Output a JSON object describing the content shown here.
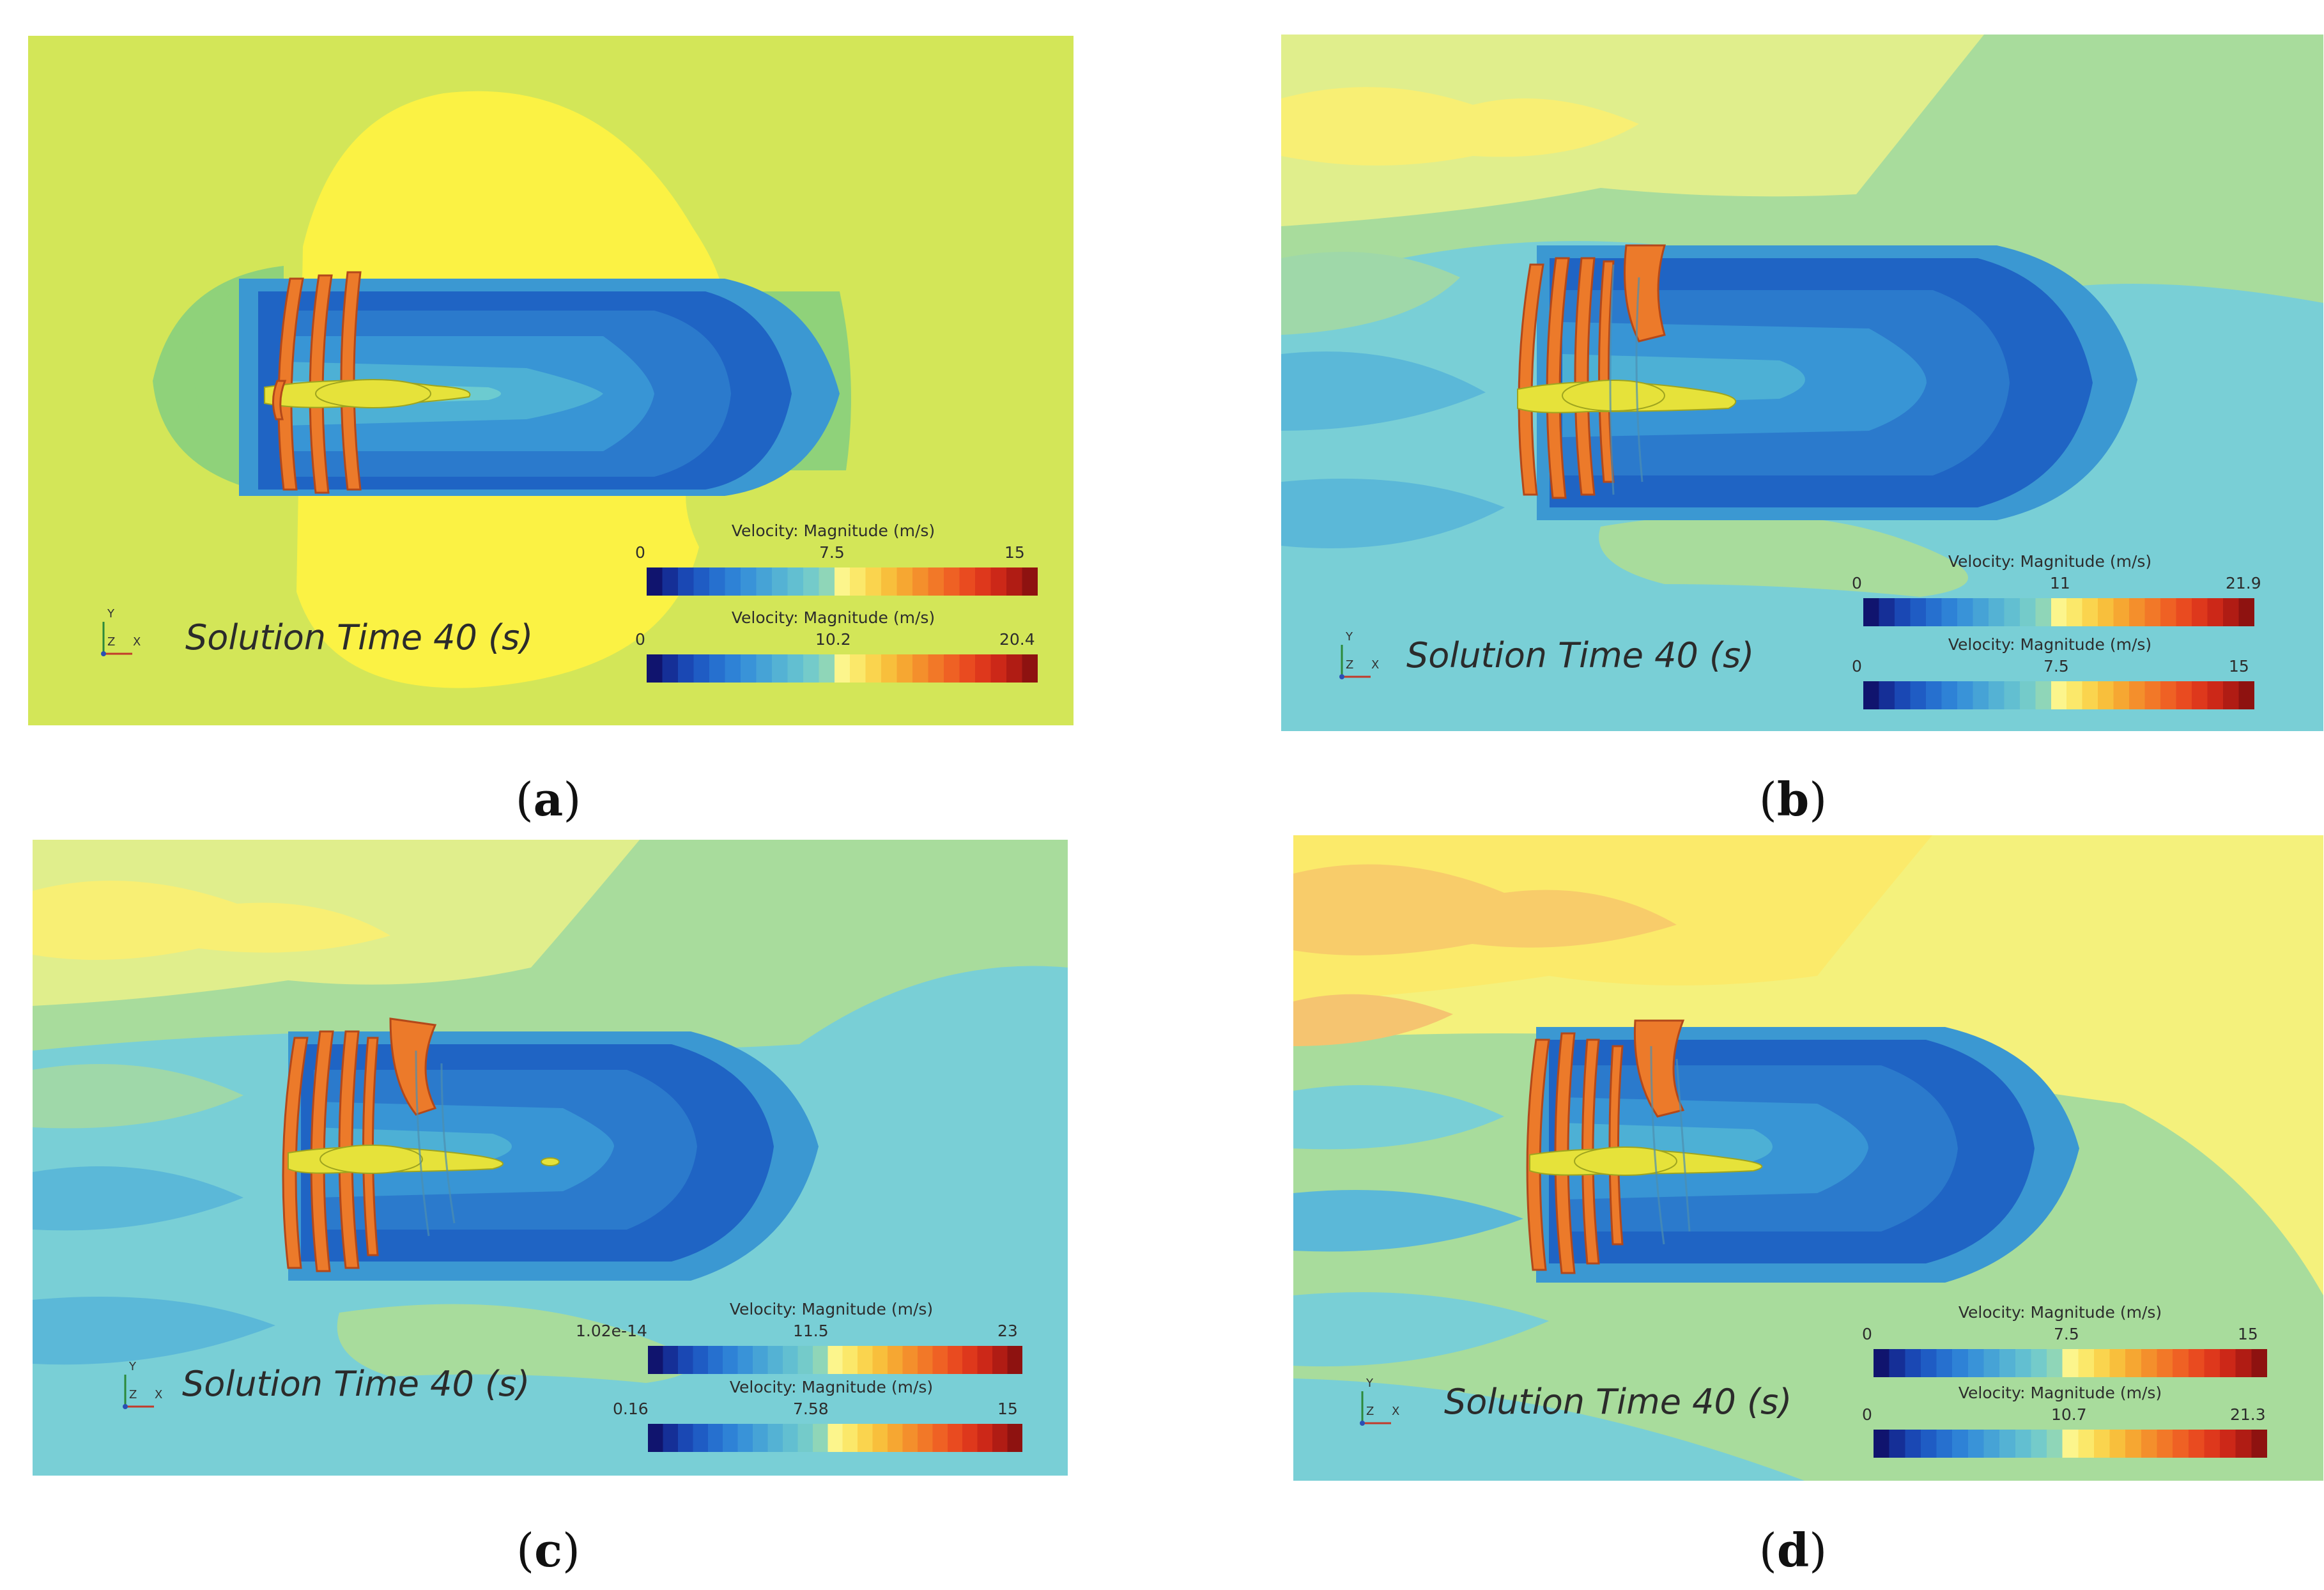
{
  "panels": {
    "a": {
      "caption": "a",
      "solution_time": "Solution Time 40 (s)",
      "axes": {
        "y": "Y",
        "z": "Z",
        "x": "X"
      },
      "legend_top": {
        "title": "Velocity: Magnitude (m/s)",
        "min": "0",
        "mid": "7.5",
        "max": "15"
      },
      "legend_bottom": {
        "title": "Velocity: Magnitude (m/s)",
        "min": "0",
        "mid": "10.2",
        "max": "20.4"
      }
    },
    "b": {
      "caption": "b",
      "solution_time": "Solution Time 40 (s)",
      "axes": {
        "y": "Y",
        "z": "Z",
        "x": "X"
      },
      "legend_top": {
        "title": "Velocity: Magnitude (m/s)",
        "min": "0",
        "mid": "11",
        "max": "21.9"
      },
      "legend_bottom": {
        "title": "Velocity: Magnitude (m/s)",
        "min": "0",
        "mid": "7.5",
        "max": "15"
      }
    },
    "c": {
      "caption": "c",
      "solution_time": "Solution Time 40 (s)",
      "axes": {
        "y": "Y",
        "z": "Z",
        "x": "X"
      },
      "legend_top": {
        "title": "Velocity: Magnitude (m/s)",
        "min": "1.02e-14",
        "mid": "11.5",
        "max": "23"
      },
      "legend_bottom": {
        "title": "Velocity: Magnitude (m/s)",
        "min": "0.16",
        "mid": "7.58",
        "max": "15"
      }
    },
    "d": {
      "caption": "d",
      "solution_time": "Solution Time 40 (s)",
      "axes": {
        "y": "Y",
        "z": "Z",
        "x": "X"
      },
      "legend_top": {
        "title": "Velocity: Magnitude (m/s)",
        "min": "0",
        "mid": "7.5",
        "max": "15"
      },
      "legend_bottom": {
        "title": "Velocity: Magnitude (m/s)",
        "min": "0",
        "mid": "10.7",
        "max": "21.3"
      }
    }
  },
  "colors": {
    "field_a_bg": "#d3e658",
    "field_yellow": "#fbf244",
    "field_cyan": "#79cfd6",
    "field_green": "#a8dc9c",
    "wake_blue": "#1d62c2",
    "vortex_orange": "#ec7a2a",
    "hub_yellow": "#e6e23a"
  }
}
